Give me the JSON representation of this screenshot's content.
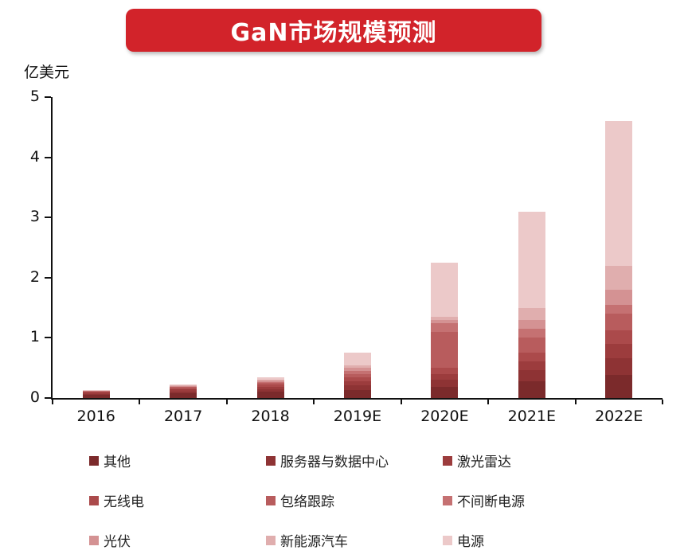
{
  "chart_data": {
    "type": "bar",
    "stacked": true,
    "title": "GaN市场规模预测",
    "title_bg_color": "#d2232a",
    "ylabel": "亿美元",
    "ylim": [
      0,
      5
    ],
    "yticks": [
      0,
      1,
      2,
      3,
      4,
      5
    ],
    "grid": false,
    "legend_position": "bottom",
    "categories": [
      "2016",
      "2017",
      "2018",
      "2019E",
      "2020E",
      "2021E",
      "2022E"
    ],
    "series": [
      {
        "name": "其他",
        "color": "#7b2a2b",
        "values": [
          0.05,
          0.08,
          0.1,
          0.13,
          0.18,
          0.28,
          0.38
        ]
      },
      {
        "name": "服务器与数据中心",
        "color": "#8e3334",
        "values": [
          0.02,
          0.03,
          0.05,
          0.08,
          0.12,
          0.18,
          0.28
        ]
      },
      {
        "name": "激光雷达",
        "color": "#9c3c3d",
        "values": [
          0.02,
          0.03,
          0.04,
          0.07,
          0.1,
          0.15,
          0.24
        ]
      },
      {
        "name": "无线电",
        "color": "#ab4a4b",
        "values": [
          0.01,
          0.02,
          0.03,
          0.06,
          0.1,
          0.15,
          0.22
        ]
      },
      {
        "name": "包络跟踪",
        "color": "#b85c5d",
        "values": [
          0.01,
          0.02,
          0.03,
          0.06,
          0.6,
          0.25,
          0.28
        ]
      },
      {
        "name": "不间断电源",
        "color": "#c57172",
        "values": [
          0.01,
          0.01,
          0.02,
          0.05,
          0.15,
          0.14,
          0.15
        ]
      },
      {
        "name": "光伏",
        "color": "#d49293",
        "values": [
          0.0,
          0.01,
          0.02,
          0.05,
          0.05,
          0.15,
          0.25
        ]
      },
      {
        "name": "新能源汽车",
        "color": "#e0aeae",
        "values": [
          0.0,
          0.01,
          0.02,
          0.05,
          0.05,
          0.2,
          0.4
        ]
      },
      {
        "name": "电源",
        "color": "#ecc9c9",
        "values": [
          0.01,
          0.01,
          0.03,
          0.2,
          0.9,
          1.6,
          2.4
        ]
      }
    ],
    "totals": [
      0.13,
      0.22,
      0.34,
      0.75,
      2.25,
      3.1,
      4.6
    ]
  }
}
